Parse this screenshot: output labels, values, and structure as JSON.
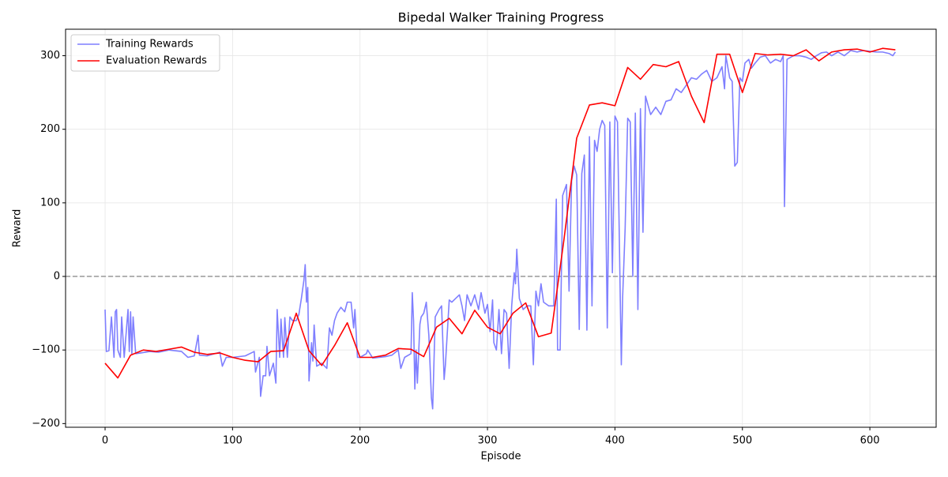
{
  "chart_data": {
    "type": "line",
    "title": "Bipedal Walker Training Progress",
    "xlabel": "Episode",
    "ylabel": "Reward",
    "xlim": [
      -31,
      652
    ],
    "ylim": [
      -205,
      336
    ],
    "xticks": [
      0,
      100,
      200,
      300,
      400,
      500,
      600
    ],
    "yticks": [
      {
        "value": -200,
        "label": "−200"
      },
      {
        "value": -100,
        "label": "−100"
      },
      0,
      100,
      200,
      300
    ],
    "grid": true,
    "legend": "upper left",
    "hline": {
      "y": 0,
      "color": "#999999",
      "style": "dashed"
    },
    "series": [
      {
        "name": "Training Rewards",
        "color": "#7f7fff",
        "x": [
          0,
          1,
          3,
          5,
          7,
          8,
          9,
          10,
          12,
          13,
          15,
          18,
          19,
          20,
          21,
          22,
          24,
          28,
          35,
          42,
          50,
          60,
          65,
          70,
          73,
          74,
          80,
          90,
          92,
          95,
          100,
          110,
          117,
          118,
          121,
          122,
          124,
          126,
          127,
          129,
          132,
          134,
          135,
          137,
          138,
          140,
          141,
          143,
          145,
          147,
          150,
          152,
          154,
          156,
          157,
          158,
          159,
          160,
          162,
          163,
          164,
          166,
          170,
          174,
          176,
          178,
          180,
          182,
          185,
          188,
          190,
          193,
          195,
          196,
          198,
          200,
          205,
          206,
          210,
          220,
          225,
          230,
          232,
          235,
          240,
          241,
          242,
          243,
          244,
          245,
          247,
          248,
          250,
          252,
          254,
          256,
          257,
          259,
          262,
          264,
          266,
          267,
          270,
          272,
          275,
          278,
          280,
          282,
          284,
          287,
          290,
          293,
          295,
          298,
          300,
          302,
          304,
          305,
          307,
          309,
          311,
          313,
          315,
          317,
          319,
          321,
          322,
          323,
          325,
          328,
          331,
          334,
          336,
          338,
          340,
          342,
          344,
          348,
          352,
          354,
          355,
          357,
          359,
          362,
          364,
          366,
          368,
          370,
          372,
          374,
          376,
          378,
          380,
          382,
          384,
          386,
          388,
          390,
          392,
          394,
          396,
          398,
          400,
          402,
          405,
          406,
          408,
          410,
          412,
          414,
          416,
          418,
          420,
          422,
          424,
          428,
          432,
          436,
          440,
          444,
          448,
          452,
          456,
          460,
          464,
          468,
          472,
          476,
          480,
          484,
          486,
          487,
          490,
          492,
          494,
          496,
          498,
          500,
          502,
          505,
          507,
          510,
          514,
          518,
          522,
          526,
          530,
          532,
          533,
          535,
          540,
          545,
          550,
          554,
          558,
          562,
          566,
          570,
          575,
          580,
          585,
          590,
          595,
          600,
          605,
          610,
          615,
          618,
          620
        ],
        "values": [
          -45,
          -102,
          -101,
          -55,
          -110,
          -48,
          -45,
          -100,
          -110,
          -55,
          -110,
          -45,
          -102,
          -48,
          -105,
          -55,
          -105,
          -104,
          -102,
          -103,
          -100,
          -102,
          -110,
          -108,
          -80,
          -107,
          -108,
          -103,
          -122,
          -110,
          -110,
          -108,
          -102,
          -130,
          -110,
          -163,
          -135,
          -135,
          -95,
          -135,
          -118,
          -145,
          -45,
          -110,
          -58,
          -110,
          -56,
          -110,
          -55,
          -60,
          -60,
          -52,
          -30,
          -5,
          16,
          -35,
          -15,
          -142,
          -90,
          -115,
          -66,
          -122,
          -118,
          -125,
          -70,
          -80,
          -60,
          -50,
          -42,
          -48,
          -35,
          -35,
          -70,
          -45,
          -110,
          -110,
          -105,
          -100,
          -111,
          -109,
          -107,
          -100,
          -125,
          -110,
          -105,
          -22,
          -60,
          -153,
          -100,
          -145,
          -65,
          -55,
          -50,
          -35,
          -80,
          -165,
          -180,
          -55,
          -45,
          -40,
          -140,
          -120,
          -32,
          -35,
          -30,
          -25,
          -40,
          -60,
          -25,
          -40,
          -25,
          -45,
          -22,
          -50,
          -38,
          -75,
          -32,
          -90,
          -100,
          -45,
          -105,
          -45,
          -50,
          -125,
          -40,
          5,
          -10,
          37,
          -30,
          -45,
          -40,
          -40,
          -120,
          -20,
          -40,
          -10,
          -35,
          -40,
          -40,
          105,
          -100,
          -100,
          110,
          125,
          -20,
          130,
          150,
          138,
          -72,
          140,
          165,
          -73,
          190,
          -40,
          185,
          170,
          200,
          212,
          205,
          -70,
          210,
          5,
          218,
          210,
          -120,
          -30,
          65,
          215,
          210,
          0,
          222,
          -45,
          228,
          60,
          245,
          220,
          230,
          220,
          238,
          240,
          255,
          250,
          260,
          270,
          268,
          275,
          280,
          265,
          270,
          285,
          255,
          300,
          270,
          265,
          150,
          155,
          270,
          265,
          290,
          295,
          283,
          290,
          298,
          300,
          290,
          295,
          292,
          300,
          95,
          295,
          300,
          300,
          298,
          295,
          300,
          304,
          305,
          300,
          305,
          300,
          307,
          305,
          307,
          306,
          305,
          305,
          303,
          300,
          305
        ]
      },
      {
        "name": "Evaluation Rewards",
        "color": "#ff0000",
        "x": [
          0,
          10,
          20,
          30,
          40,
          50,
          60,
          70,
          80,
          90,
          100,
          110,
          120,
          130,
          140,
          150,
          160,
          170,
          180,
          190,
          200,
          210,
          220,
          230,
          240,
          250,
          260,
          270,
          280,
          290,
          300,
          310,
          320,
          330,
          340,
          350,
          360,
          370,
          380,
          390,
          400,
          410,
          420,
          430,
          440,
          450,
          460,
          470,
          480,
          490,
          500,
          510,
          520,
          530,
          540,
          550,
          560,
          570,
          580,
          590,
          600,
          610,
          620
        ],
        "values": [
          -118,
          -138,
          -107,
          -100,
          -102,
          -99,
          -96,
          -103,
          -106,
          -104,
          -110,
          -114,
          -116,
          -102,
          -101,
          -50,
          -101,
          -121,
          -94,
          -63,
          -110,
          -110,
          -107,
          -98,
          -99,
          -109,
          -69,
          -57,
          -78,
          -46,
          -69,
          -78,
          -50,
          -36,
          -82,
          -77,
          50,
          188,
          233,
          236,
          232,
          284,
          268,
          288,
          285,
          292,
          245,
          209,
          302,
          302,
          250,
          303,
          301,
          302,
          300,
          308,
          293,
          305,
          308,
          309,
          305,
          310,
          308
        ]
      }
    ]
  }
}
